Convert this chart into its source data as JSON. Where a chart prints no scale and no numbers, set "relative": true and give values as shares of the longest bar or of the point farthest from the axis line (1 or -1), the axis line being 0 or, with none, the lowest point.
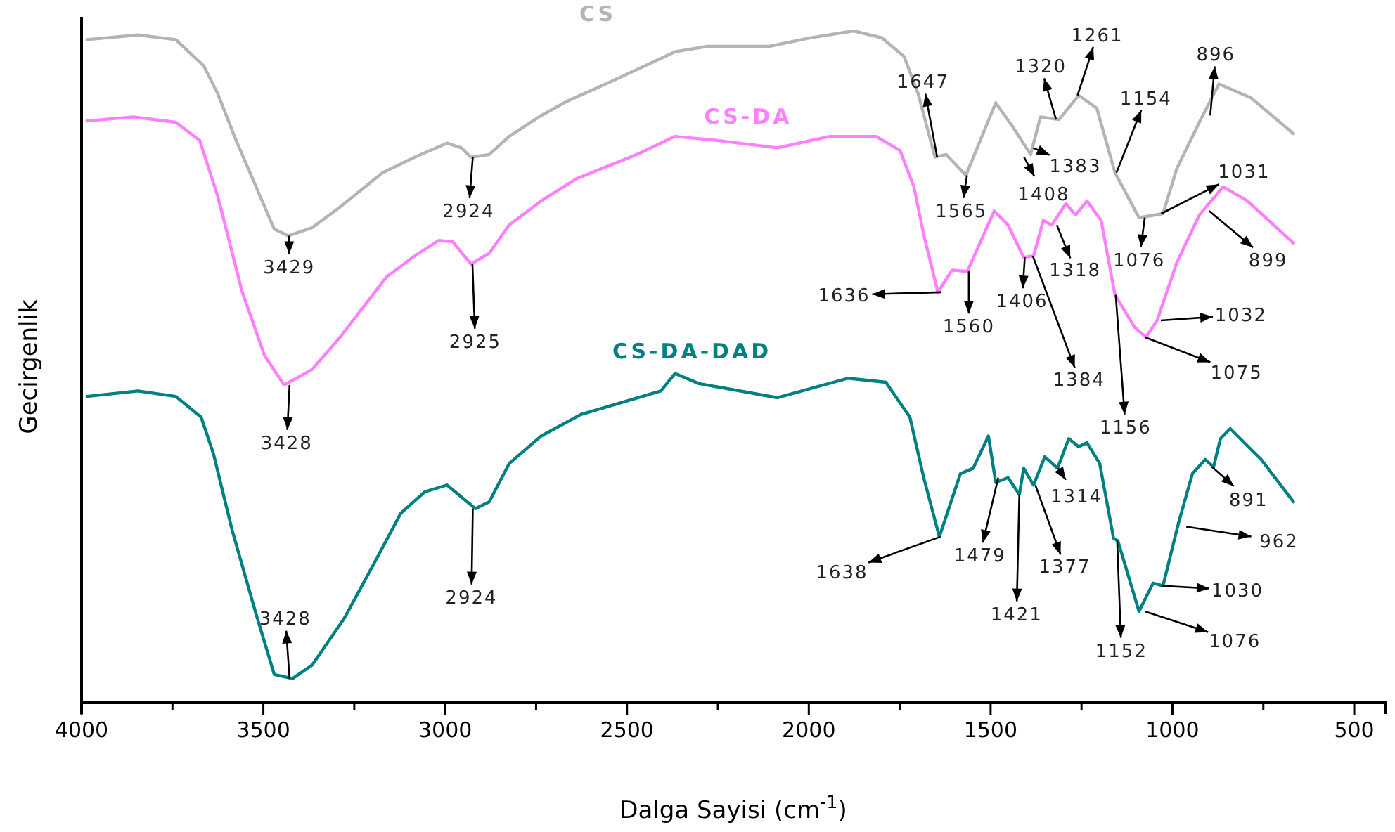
{
  "chart_data": {
    "type": "line",
    "relative": true,
    "xlabel": "Dalga Sayisi (cm$^{-1}$)",
    "ylabel": "Gecirgenlik",
    "xlim": [
      4000,
      415
    ],
    "xticks": [
      4000,
      {
        "value": 3750,
        "label": null
      },
      3500,
      {
        "value": 3250,
        "label": null
      },
      3000,
      {
        "value": 2750,
        "label": null
      },
      2500,
      {
        "value": 2250,
        "label": null
      },
      2000,
      {
        "value": 1750,
        "label": null
      },
      1500,
      {
        "value": 1250,
        "label": null
      },
      1000,
      {
        "value": 750,
        "label": null
      },
      500
    ],
    "marker": "none",
    "line_style": "solid",
    "series": [
      {
        "name": "CS",
        "color": "#b4b4b4",
        "x": [
          3985,
          3845,
          3741,
          3664,
          3625,
          3575,
          3520,
          3470,
          3432,
          3366,
          3289,
          3172,
          3084,
          2995,
          2956,
          2929,
          2879,
          2824,
          2736,
          2666,
          2534,
          2368,
          2279,
          2109,
          1993,
          1877,
          1800,
          1738,
          1699,
          1653,
          1622,
          1568,
          1486,
          1440,
          1390,
          1363,
          1312,
          1258,
          1208,
          1158,
          1092,
          1026,
          988,
          926,
          872,
          783,
          667
        ],
        "values": [
          0.987,
          0.994,
          0.987,
          0.948,
          0.906,
          0.837,
          0.768,
          0.705,
          0.695,
          0.707,
          0.738,
          0.789,
          0.812,
          0.833,
          0.826,
          0.812,
          0.816,
          0.843,
          0.874,
          0.895,
          0.927,
          0.969,
          0.977,
          0.977,
          0.99,
          1.0,
          0.99,
          0.962,
          0.906,
          0.812,
          0.816,
          0.785,
          0.893,
          0.858,
          0.816,
          0.872,
          0.868,
          0.904,
          0.885,
          0.789,
          0.722,
          0.728,
          0.795,
          0.864,
          0.921,
          0.9,
          0.847
        ]
      },
      {
        "name": "CS-DA",
        "color": "#ff80ff",
        "x": [
          3985,
          3857,
          3741,
          3675,
          3625,
          3559,
          3497,
          3443,
          3366,
          3289,
          3161,
          3084,
          3018,
          2979,
          2929,
          2879,
          2824,
          2736,
          2639,
          2473,
          2368,
          2252,
          2086,
          1943,
          1815,
          1749,
          1711,
          1684,
          1645,
          1606,
          1564,
          1490,
          1452,
          1409,
          1382,
          1355,
          1332,
          1293,
          1266,
          1235,
          1196,
          1158,
          1104,
          1073,
          1042,
          988,
          926,
          860,
          794,
          667
        ],
        "values": [
          0.866,
          0.872,
          0.864,
          0.837,
          0.753,
          0.613,
          0.517,
          0.473,
          0.496,
          0.544,
          0.634,
          0.665,
          0.688,
          0.686,
          0.653,
          0.669,
          0.711,
          0.747,
          0.78,
          0.816,
          0.843,
          0.837,
          0.826,
          0.843,
          0.843,
          0.822,
          0.768,
          0.697,
          0.611,
          0.644,
          0.642,
          0.732,
          0.711,
          0.663,
          0.665,
          0.718,
          0.711,
          0.743,
          0.726,
          0.747,
          0.718,
          0.607,
          0.559,
          0.544,
          0.569,
          0.655,
          0.726,
          0.768,
          0.747,
          0.684
        ]
      },
      {
        "name": "CS-DA-DAD",
        "color": "#008080",
        "x": [
          3985,
          3845,
          3741,
          3671,
          3637,
          3586,
          3520,
          3470,
          3420,
          3366,
          3277,
          3200,
          3122,
          3056,
          2995,
          2917,
          2879,
          2824,
          2736,
          2627,
          2407,
          2368,
          2302,
          2086,
          1892,
          1788,
          1722,
          1684,
          1641,
          1583,
          1548,
          1506,
          1486,
          1452,
          1421,
          1409,
          1382,
          1351,
          1316,
          1285,
          1258,
          1235,
          1200,
          1162,
          1150,
          1092,
          1053,
          1026,
          984,
          945,
          910,
          887,
          868,
          841,
          756,
          667
        ],
        "values": [
          0.456,
          0.464,
          0.456,
          0.425,
          0.37,
          0.257,
          0.132,
          0.042,
          0.036,
          0.056,
          0.126,
          0.203,
          0.282,
          0.314,
          0.324,
          0.289,
          0.299,
          0.356,
          0.397,
          0.429,
          0.464,
          0.49,
          0.475,
          0.454,
          0.483,
          0.477,
          0.425,
          0.335,
          0.247,
          0.341,
          0.349,
          0.397,
          0.328,
          0.335,
          0.31,
          0.349,
          0.324,
          0.366,
          0.349,
          0.393,
          0.381,
          0.387,
          0.356,
          0.245,
          0.241,
          0.136,
          0.178,
          0.174,
          0.266,
          0.341,
          0.362,
          0.351,
          0.393,
          0.408,
          0.362,
          0.299
        ]
      }
    ],
    "annotations": [
      {
        "text": "3429",
        "x": 3429,
        "y": 0.695
      },
      {
        "text": "2924",
        "x": 2924,
        "y": 0.812
      },
      {
        "text": "1647",
        "x": 1647,
        "y": 0.812
      },
      {
        "text": "1565",
        "x": 1565,
        "y": 0.785
      },
      {
        "text": "1408",
        "x": 1408,
        "y": 0.812
      },
      {
        "text": "1383",
        "x": 1383,
        "y": 0.826
      },
      {
        "text": "1320",
        "x": 1320,
        "y": 0.868
      },
      {
        "text": "1261",
        "x": 1261,
        "y": 0.904
      },
      {
        "text": "1154",
        "x": 1154,
        "y": 0.789
      },
      {
        "text": "1076",
        "x": 1076,
        "y": 0.722
      },
      {
        "text": "1031",
        "x": 1031,
        "y": 0.728
      },
      {
        "text": "896",
        "x": 896,
        "y": 0.874
      },
      {
        "text": "3428",
        "x": 3428,
        "y": 0.473
      },
      {
        "text": "2925",
        "x": 2925,
        "y": 0.653
      },
      {
        "text": "1636",
        "x": 1636,
        "y": 0.611
      },
      {
        "text": "1560",
        "x": 1560,
        "y": 0.642
      },
      {
        "text": "1406",
        "x": 1406,
        "y": 0.663
      },
      {
        "text": "1384",
        "x": 1384,
        "y": 0.665
      },
      {
        "text": "1318",
        "x": 1318,
        "y": 0.711
      },
      {
        "text": "1156",
        "x": 1156,
        "y": 0.607
      },
      {
        "text": "1075",
        "x": 1075,
        "y": 0.544
      },
      {
        "text": "1032",
        "x": 1032,
        "y": 0.569
      },
      {
        "text": "899",
        "x": 899,
        "y": 0.732
      },
      {
        "text": "3428",
        "x": 3428,
        "y": 0.036
      },
      {
        "text": "2924",
        "x": 2924,
        "y": 0.289
      },
      {
        "text": "1638",
        "x": 1638,
        "y": 0.247
      },
      {
        "text": "1479",
        "x": 1479,
        "y": 0.335
      },
      {
        "text": "1421",
        "x": 1421,
        "y": 0.31
      },
      {
        "text": "1377",
        "x": 1377,
        "y": 0.324
      },
      {
        "text": "1314",
        "x": 1314,
        "y": 0.349
      },
      {
        "text": "1152",
        "x": 1152,
        "y": 0.241
      },
      {
        "text": "1076",
        "x": 1076,
        "y": 0.136
      },
      {
        "text": "1030",
        "x": 1030,
        "y": 0.174
      },
      {
        "text": "962",
        "x": 962,
        "y": 0.262
      },
      {
        "text": "891",
        "x": 891,
        "y": 0.351
      }
    ]
  }
}
